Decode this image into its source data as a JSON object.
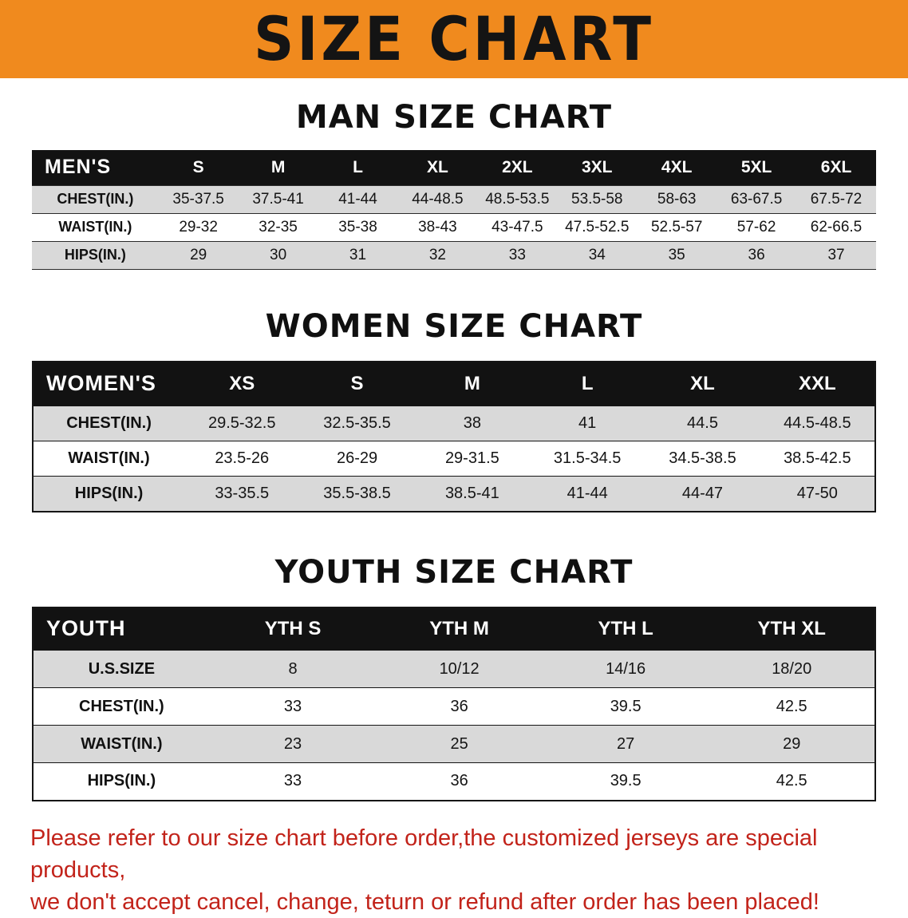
{
  "banner": {
    "title": "SIZE CHART"
  },
  "colors": {
    "banner": "#F08A1E",
    "header": "#121212",
    "shade": "#D9D9D9",
    "disclaimer": "#C2231A"
  },
  "sections": [
    {
      "id": "men",
      "heading": "MAN SIZE CHART",
      "corner": "MEN'S",
      "columns": [
        "S",
        "M",
        "L",
        "XL",
        "2XL",
        "3XL",
        "4XL",
        "5XL",
        "6XL"
      ],
      "rows": [
        {
          "label": "CHEST(IN.)",
          "values": [
            "35-37.5",
            "37.5-41",
            "41-44",
            "44-48.5",
            "48.5-53.5",
            "53.5-58",
            "58-63",
            "63-67.5",
            "67.5-72"
          ]
        },
        {
          "label": "WAIST(IN.)",
          "values": [
            "29-32",
            "32-35",
            "35-38",
            "38-43",
            "43-47.5",
            "47.5-52.5",
            "52.5-57",
            "57-62",
            "62-66.5"
          ]
        },
        {
          "label": "HIPS(IN.)",
          "values": [
            "29",
            "30",
            "31",
            "32",
            "33",
            "34",
            "35",
            "36",
            "37"
          ]
        }
      ]
    },
    {
      "id": "women",
      "heading": "WOMEN SIZE CHART",
      "corner": "WOMEN'S",
      "columns": [
        "XS",
        "S",
        "M",
        "L",
        "XL",
        "XXL"
      ],
      "rows": [
        {
          "label": "CHEST(IN.)",
          "values": [
            "29.5-32.5",
            "32.5-35.5",
            "38",
            "41",
            "44.5",
            "44.5-48.5"
          ]
        },
        {
          "label": "WAIST(IN.)",
          "values": [
            "23.5-26",
            "26-29",
            "29-31.5",
            "31.5-34.5",
            "34.5-38.5",
            "38.5-42.5"
          ]
        },
        {
          "label": "HIPS(IN.)",
          "values": [
            "33-35.5",
            "35.5-38.5",
            "38.5-41",
            "41-44",
            "44-47",
            "47-50"
          ]
        }
      ]
    },
    {
      "id": "youth",
      "heading": "YOUTH SIZE CHART",
      "corner": "YOUTH",
      "columns": [
        "YTH S",
        "YTH M",
        "YTH L",
        "YTH XL"
      ],
      "rows": [
        {
          "label": "U.S.SIZE",
          "values": [
            "8",
            "10/12",
            "14/16",
            "18/20"
          ]
        },
        {
          "label": "CHEST(IN.)",
          "values": [
            "33",
            "36",
            "39.5",
            "42.5"
          ]
        },
        {
          "label": "WAIST(IN.)",
          "values": [
            "23",
            "25",
            "27",
            "29"
          ]
        },
        {
          "label": "HIPS(IN.)",
          "values": [
            "33",
            "36",
            "39.5",
            "42.5"
          ]
        }
      ]
    }
  ],
  "disclaimer": {
    "line1": "Please refer to our size chart before order,the customized jerseys are special products,",
    "line2": "we don't accept cancel, change, teturn or refund after order has been placed!"
  }
}
